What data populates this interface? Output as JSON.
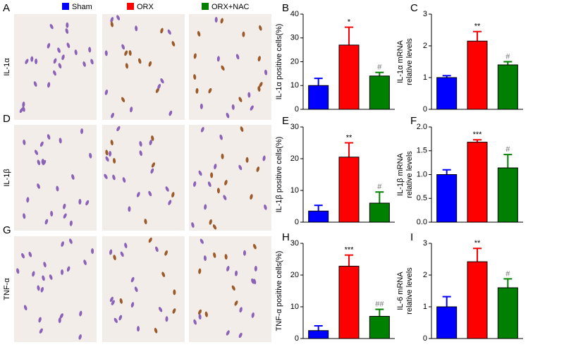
{
  "legend": [
    {
      "name": "Sham",
      "color": "#0000ff"
    },
    {
      "name": "ORX",
      "color": "#ff0000"
    },
    {
      "name": "ORX+NAC",
      "color": "#008000"
    }
  ],
  "image_panels": {
    "letters": [
      "A",
      "D",
      "G"
    ],
    "row_labels": [
      "IL-1α",
      "IL-1β",
      "TNF-α"
    ]
  },
  "chart_data": [
    {
      "type": "bar",
      "panel": "B",
      "ylabel": [
        "IL-1α positive cells(%)"
      ],
      "values": [
        10,
        27,
        14
      ],
      "errors": [
        3,
        7.5,
        1.5
      ],
      "annotations": [
        null,
        "*",
        "#"
      ],
      "colors": [
        "#0000ff",
        "#ff0000",
        "#008000"
      ],
      "ylim": [
        0,
        40
      ],
      "yticks": [
        0,
        10,
        20,
        30,
        40
      ]
    },
    {
      "type": "bar",
      "panel": "C",
      "ylabel": [
        "IL-1α mRNA",
        "relative levels"
      ],
      "values": [
        1.0,
        2.15,
        1.4
      ],
      "errors": [
        0.06,
        0.3,
        0.1
      ],
      "annotations": [
        null,
        "**",
        "#"
      ],
      "colors": [
        "#0000ff",
        "#ff0000",
        "#008000"
      ],
      "ylim": [
        0,
        3
      ],
      "yticks": [
        0,
        1,
        2,
        3
      ]
    },
    {
      "type": "bar",
      "panel": "E",
      "ylabel": [
        "IL-1β positive cells(%)"
      ],
      "values": [
        3.5,
        20.5,
        6
      ],
      "errors": [
        1.8,
        4.5,
        3.5
      ],
      "annotations": [
        null,
        "**",
        "#"
      ],
      "colors": [
        "#0000ff",
        "#ff0000",
        "#008000"
      ],
      "ylim": [
        0,
        30
      ],
      "yticks": [
        0,
        10,
        20,
        30
      ]
    },
    {
      "type": "bar",
      "panel": "F",
      "ylabel": [
        "IL-1β mRNA",
        "relative levels"
      ],
      "values": [
        1.0,
        1.68,
        1.14
      ],
      "errors": [
        0.1,
        0.05,
        0.28
      ],
      "annotations": [
        null,
        "***",
        "#"
      ],
      "colors": [
        "#0000ff",
        "#ff0000",
        "#008000"
      ],
      "ylim": [
        0,
        2
      ],
      "yticks": [
        {
          "value": 0,
          "label": "0.0"
        },
        0.5,
        {
          "value": 1,
          "label": "1.0"
        },
        1.5,
        {
          "value": 2,
          "label": "2.0"
        }
      ]
    },
    {
      "type": "bar",
      "panel": "H",
      "ylabel": [
        "TNF-α positive cells(%)"
      ],
      "values": [
        2.5,
        22.8,
        7
      ],
      "errors": [
        1.5,
        3.5,
        2.2
      ],
      "annotations": [
        null,
        "***",
        "##"
      ],
      "colors": [
        "#0000ff",
        "#ff0000",
        "#008000"
      ],
      "ylim": [
        0,
        30
      ],
      "yticks": [
        0,
        10,
        20,
        30
      ]
    },
    {
      "type": "bar",
      "panel": "I",
      "ylabel": [
        "IL-6 mRNA",
        "relative levels"
      ],
      "values": [
        1.0,
        2.42,
        1.6
      ],
      "errors": [
        0.32,
        0.42,
        0.28
      ],
      "annotations": [
        null,
        "**",
        "#"
      ],
      "colors": [
        "#0000ff",
        "#ff0000",
        "#008000"
      ],
      "ylim": [
        0,
        3
      ],
      "yticks": [
        0,
        1,
        2,
        3
      ]
    }
  ]
}
